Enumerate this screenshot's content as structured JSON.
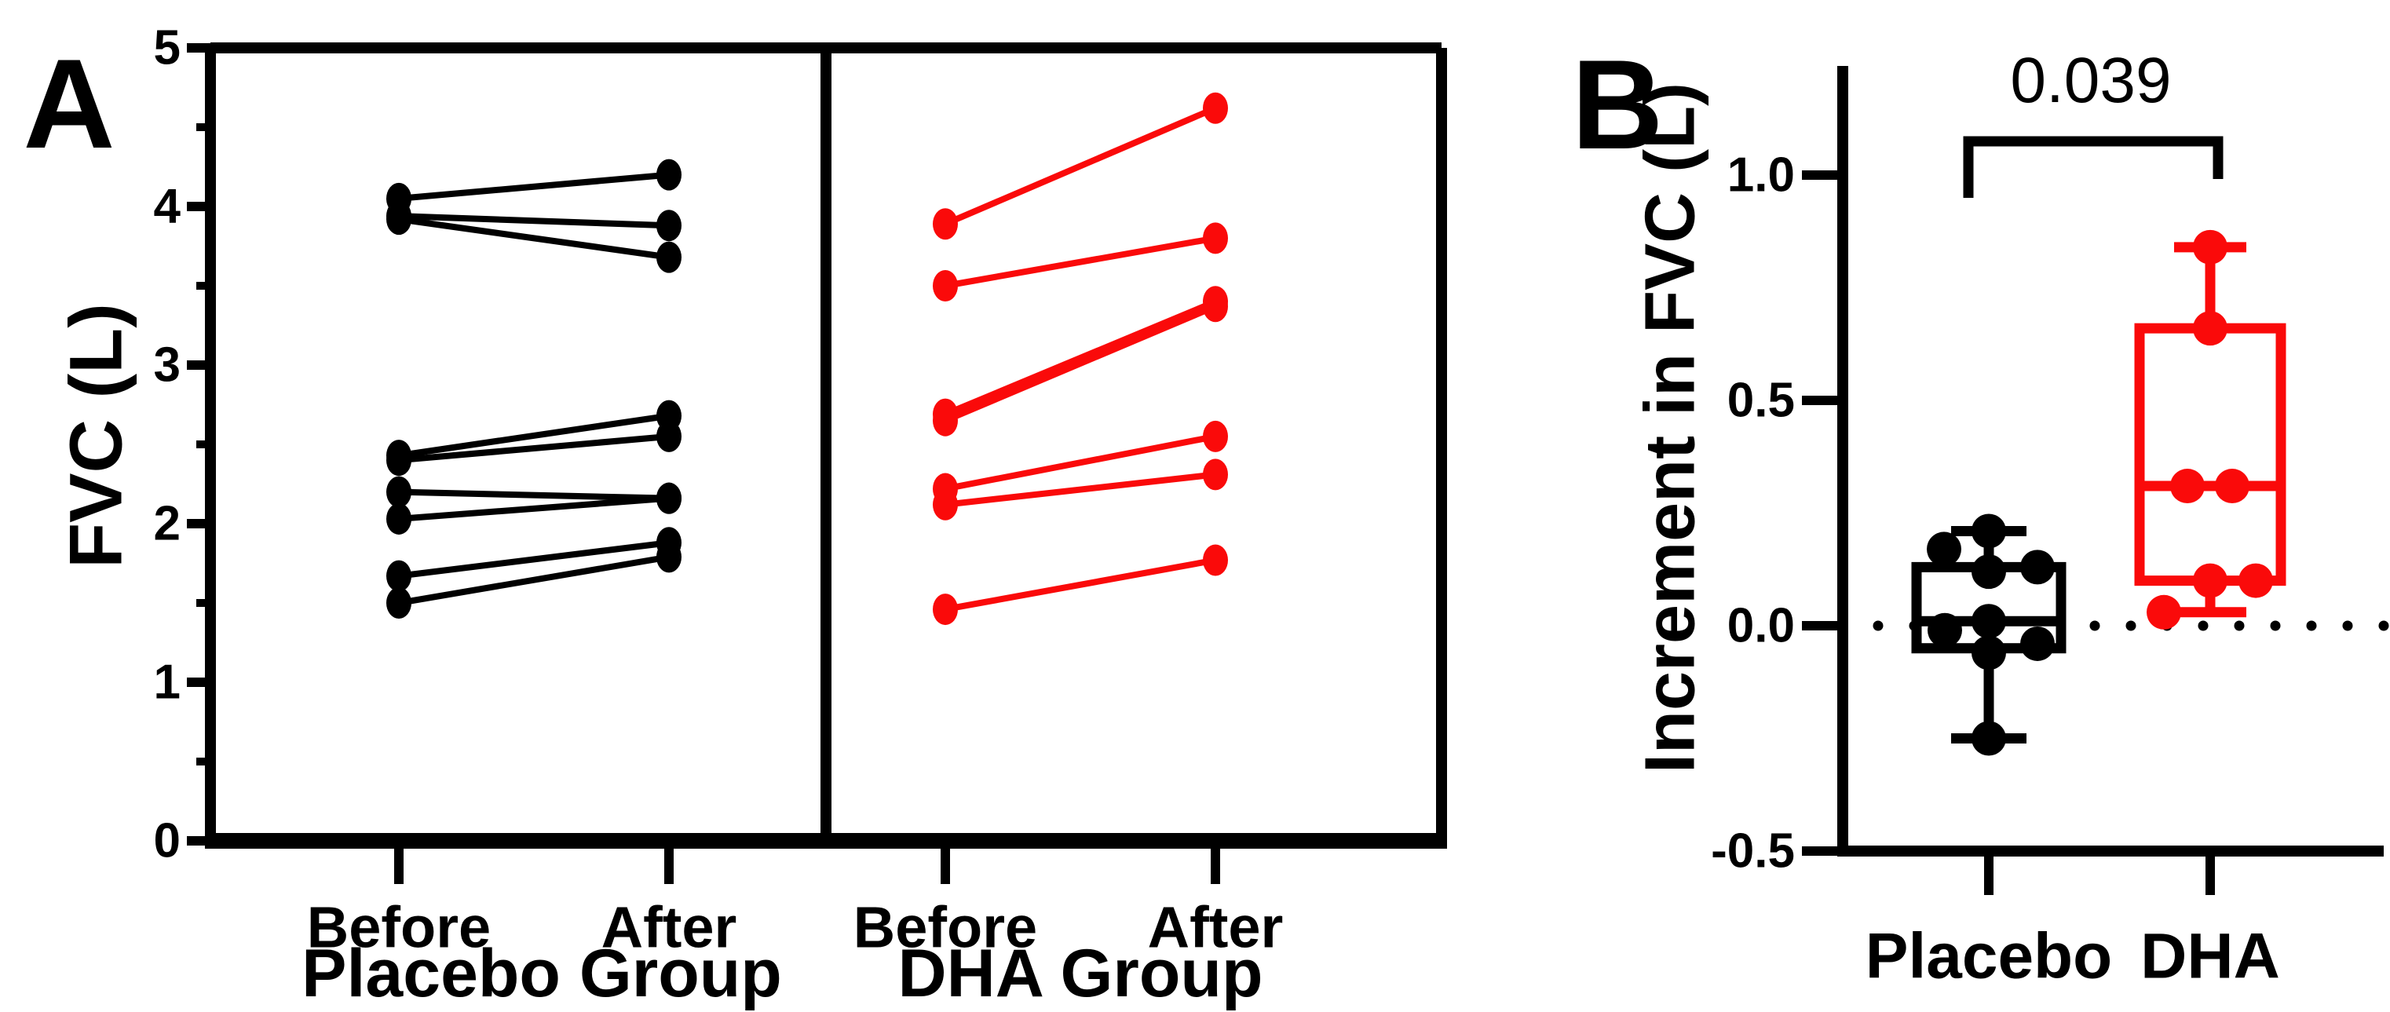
{
  "labels": {
    "panel_a": "A",
    "panel_b": "B"
  },
  "chart_data": [
    {
      "type": "line",
      "subtype": "paired-before-after",
      "panel": "A",
      "title": "",
      "ylabel": "FVC (L)",
      "ylim": [
        0,
        5
      ],
      "yticks": [
        0,
        1,
        2,
        3,
        4,
        5
      ],
      "minor_tick_step": 0.5,
      "categories": [
        "Before",
        "After",
        "Before",
        "After"
      ],
      "groups": [
        "Placebo Group",
        "DHA Group"
      ],
      "grid": false,
      "legend": "none",
      "series": [
        {
          "name": "Placebo",
          "color": "#000000",
          "pairs": [
            [
              4.05,
              4.2
            ],
            [
              3.94,
              3.88
            ],
            [
              3.92,
              3.68
            ],
            [
              2.43,
              2.68
            ],
            [
              2.4,
              2.55
            ],
            [
              2.2,
              2.16
            ],
            [
              2.03,
              2.16
            ],
            [
              1.67,
              1.88
            ],
            [
              1.5,
              1.79
            ]
          ]
        },
        {
          "name": "DHA",
          "color": "#FA0A0A",
          "pairs": [
            [
              3.89,
              4.62
            ],
            [
              3.5,
              3.8
            ],
            [
              2.69,
              3.4
            ],
            [
              2.65,
              3.37
            ],
            [
              2.22,
              2.55
            ],
            [
              2.12,
              2.31
            ],
            [
              1.46,
              1.77
            ]
          ]
        }
      ]
    },
    {
      "type": "box",
      "panel": "B",
      "title": "",
      "ylabel": "Increment in FVC (L)",
      "ylim": [
        -0.5,
        1.24
      ],
      "ytick_values": [
        1.0,
        0.5,
        0.0,
        -0.5
      ],
      "ytick_labels": [
        "1.0",
        "0.5",
        "0.0",
        "-0.5"
      ],
      "categories": [
        "Placebo",
        "DHA"
      ],
      "annotation": {
        "p_value": "0.039"
      },
      "zero_reference_line": true,
      "grid": false,
      "boxes": [
        {
          "name": "Placebo",
          "color": "#000000",
          "whisker_low": -0.25,
          "q1": -0.05,
          "median": 0.01,
          "q3": 0.13,
          "whisker_high": 0.21,
          "points": [
            [
              0.21,
              0
            ],
            [
              0.17,
              -57
            ],
            [
              0.13,
              62
            ],
            [
              0.12,
              0
            ],
            [
              0.01,
              0
            ],
            [
              -0.01,
              -56
            ],
            [
              -0.04,
              62
            ],
            [
              -0.06,
              0
            ],
            [
              -0.25,
              0
            ]
          ]
        },
        {
          "name": "DHA",
          "color": "#FA0A0A",
          "whisker_low": 0.03,
          "q1": 0.1,
          "median": 0.31,
          "q3": 0.66,
          "whisker_high": 0.84,
          "points": [
            [
              0.84,
              0
            ],
            [
              0.66,
              0
            ],
            [
              0.31,
              -29
            ],
            [
              0.31,
              28
            ],
            [
              0.1,
              0
            ],
            [
              0.1,
              58
            ],
            [
              0.03,
              -59
            ]
          ]
        }
      ]
    }
  ]
}
